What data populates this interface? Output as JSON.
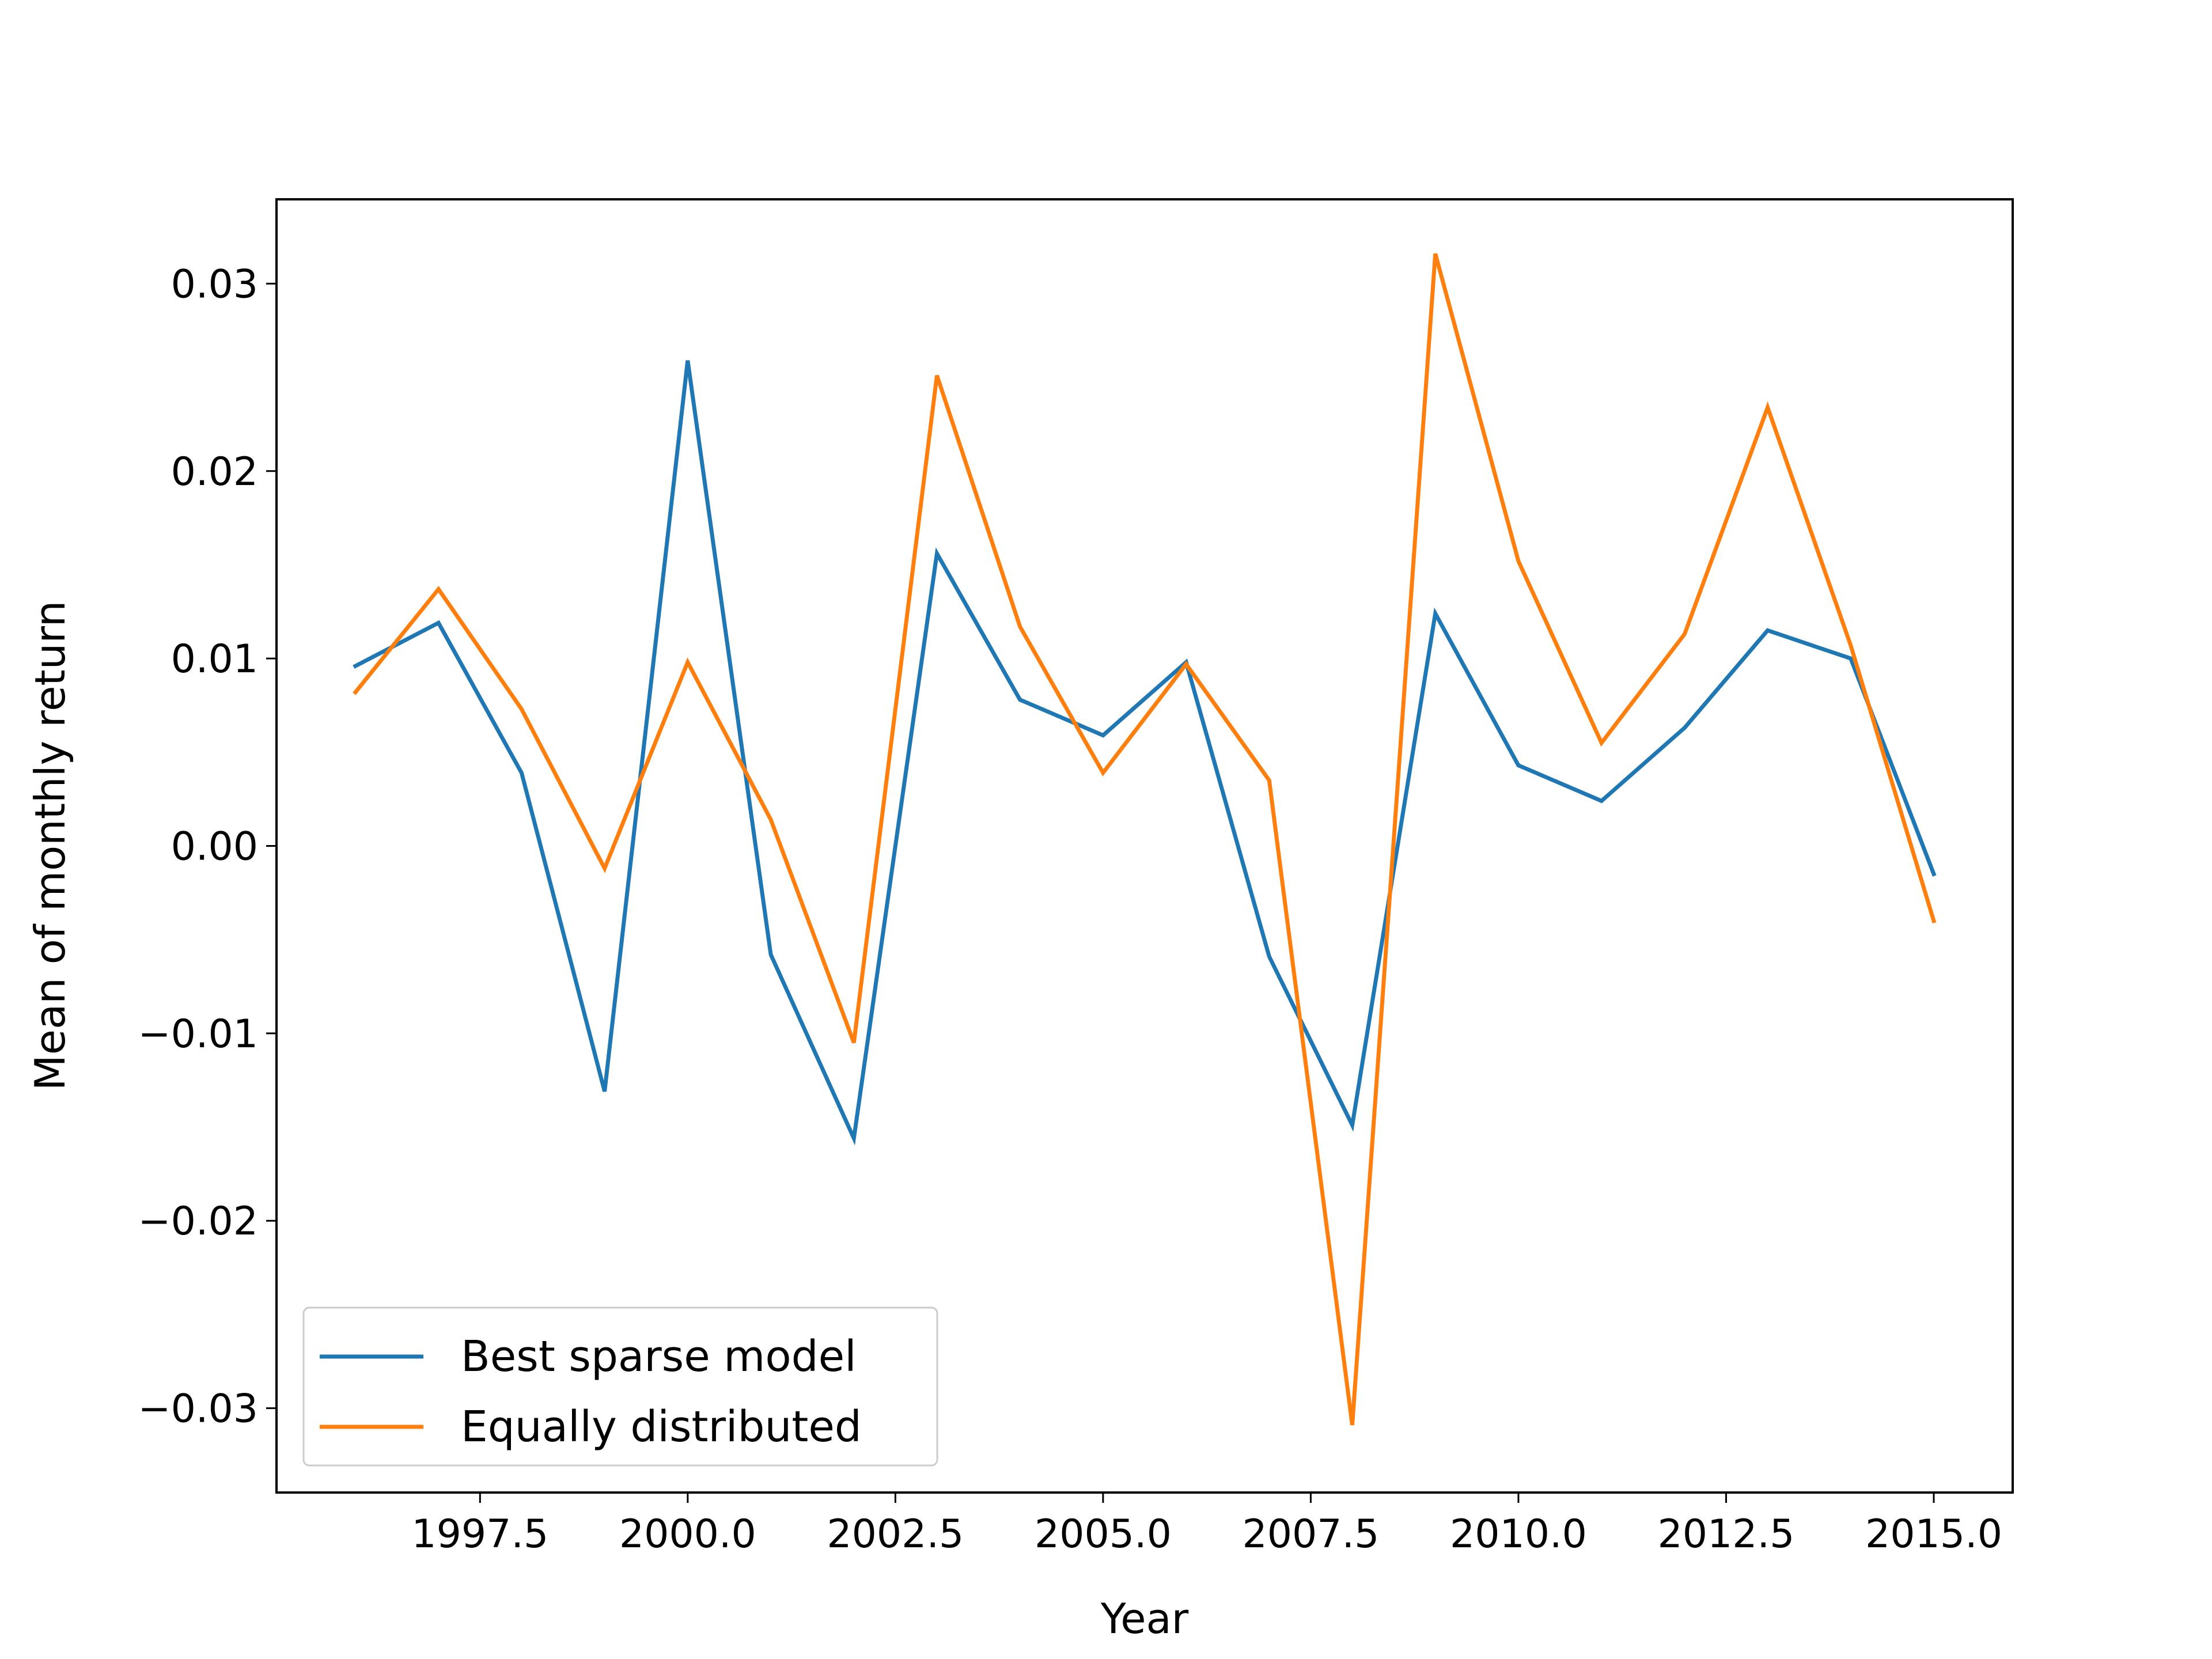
{
  "chart_data": {
    "type": "line",
    "title": "",
    "xlabel": "Year",
    "ylabel": "Mean of monthly return",
    "xlim": [
      1995.05,
      2015.95
    ],
    "ylim": [
      -0.0345,
      0.0345
    ],
    "xticks": [
      1997.5,
      2000.0,
      2002.5,
      2005.0,
      2007.5,
      2010.0,
      2012.5,
      2015.0
    ],
    "xtick_labels": [
      "1997.5",
      "2000.0",
      "2002.5",
      "2005.0",
      "2007.5",
      "2010.0",
      "2012.5",
      "2015.0"
    ],
    "yticks": [
      -0.03,
      -0.02,
      -0.01,
      0.0,
      0.01,
      0.02,
      0.03
    ],
    "ytick_labels": [
      "−0.03",
      "−0.02",
      "−0.01",
      "0.00",
      "0.01",
      "0.02",
      "0.03"
    ],
    "grid": false,
    "legend_position": "lower-left",
    "x": [
      1996,
      1997,
      1998,
      1999,
      2000,
      2001,
      2002,
      2003,
      2004,
      2005,
      2006,
      2007,
      2008,
      2009,
      2010,
      2011,
      2012,
      2013,
      2014,
      2015
    ],
    "series": [
      {
        "name": "Best sparse model",
        "color": "#1f77b4",
        "values": [
          0.0096,
          0.0119,
          0.0039,
          -0.0131,
          0.0259,
          -0.0058,
          -0.0156,
          0.0156,
          0.0078,
          0.0059,
          0.0098,
          -0.0059,
          -0.0149,
          0.0124,
          0.0043,
          0.0024,
          0.0063,
          0.0115,
          0.01,
          -0.0015
        ]
      },
      {
        "name": "Equally distributed",
        "color": "#ff7f0e",
        "values": [
          0.0082,
          0.0137,
          0.0073,
          -0.0012,
          0.0098,
          0.0014,
          -0.0105,
          0.0251,
          0.0117,
          0.0039,
          0.0097,
          0.0035,
          -0.0309,
          0.0316,
          0.0152,
          0.0055,
          0.0113,
          0.0234,
          0.0107,
          -0.004
        ]
      }
    ]
  }
}
